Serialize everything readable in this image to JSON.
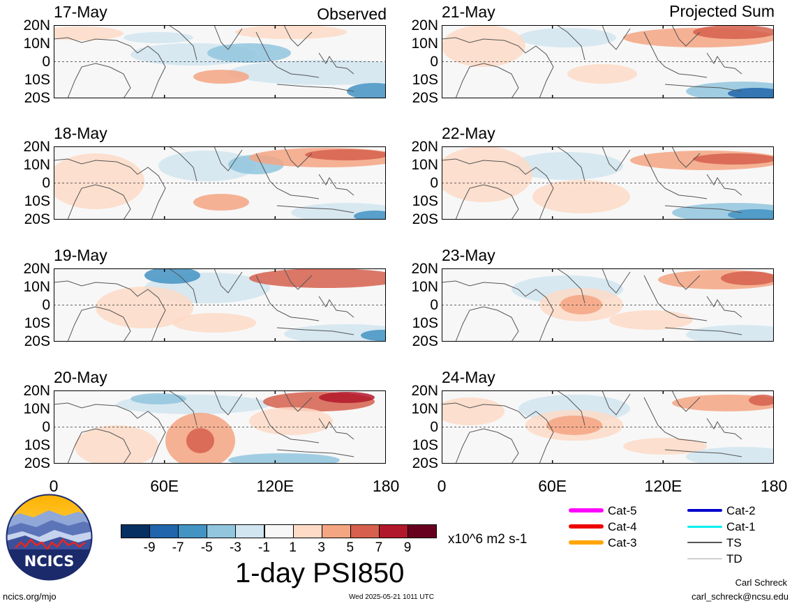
{
  "panel_titles": {
    "observed": "Observed",
    "projected": "Projected Sum"
  },
  "panels": [
    {
      "date": "17-May",
      "column": "observed"
    },
    {
      "date": "18-May",
      "column": "observed"
    },
    {
      "date": "19-May",
      "column": "observed"
    },
    {
      "date": "20-May",
      "column": "observed"
    },
    {
      "date": "21-May",
      "column": "projected"
    },
    {
      "date": "22-May",
      "column": "projected"
    },
    {
      "date": "23-May",
      "column": "projected"
    },
    {
      "date": "24-May",
      "column": "projected"
    }
  ],
  "lat_labels": [
    "20N",
    "10N",
    "0",
    "10S",
    "20S"
  ],
  "lon_labels": [
    "0",
    "60E",
    "120E",
    "180"
  ],
  "colorbar": {
    "colors": [
      "#053061",
      "#2166ac",
      "#4393c3",
      "#92c5de",
      "#d1e5f0",
      "#f7f7f7",
      "#fddbc7",
      "#f4a582",
      "#d6604d",
      "#b2182b",
      "#67001f"
    ],
    "ticks": [
      "-9",
      "-7",
      "-5",
      "-3",
      "-1",
      "1",
      "3",
      "5",
      "7",
      "9"
    ],
    "units": "x10^6 m2 s-1",
    "title": "1-day PSI850"
  },
  "legend": [
    {
      "label": "Cat-5",
      "color": "#ff00ff",
      "width": 6
    },
    {
      "label": "Cat-4",
      "color": "#ee0000",
      "width": 6
    },
    {
      "label": "Cat-3",
      "color": "#ffa500",
      "width": 6
    },
    {
      "label": "Cat-2",
      "color": "#0000cc",
      "width": 4
    },
    {
      "label": "Cat-1",
      "color": "#00eeee",
      "width": 3
    },
    {
      "label": "TS",
      "color": "#555555",
      "width": 2
    },
    {
      "label": "TD",
      "color": "#aaaaaa",
      "width": 1
    }
  ],
  "logo_text": "NCICS",
  "footer": {
    "url": "ncics.org/mjo",
    "timestamp": "Wed 2025-05-21 1011 UTC",
    "author": "Carl Schreck",
    "email": "carl_schreck@ncsu.edu"
  }
}
